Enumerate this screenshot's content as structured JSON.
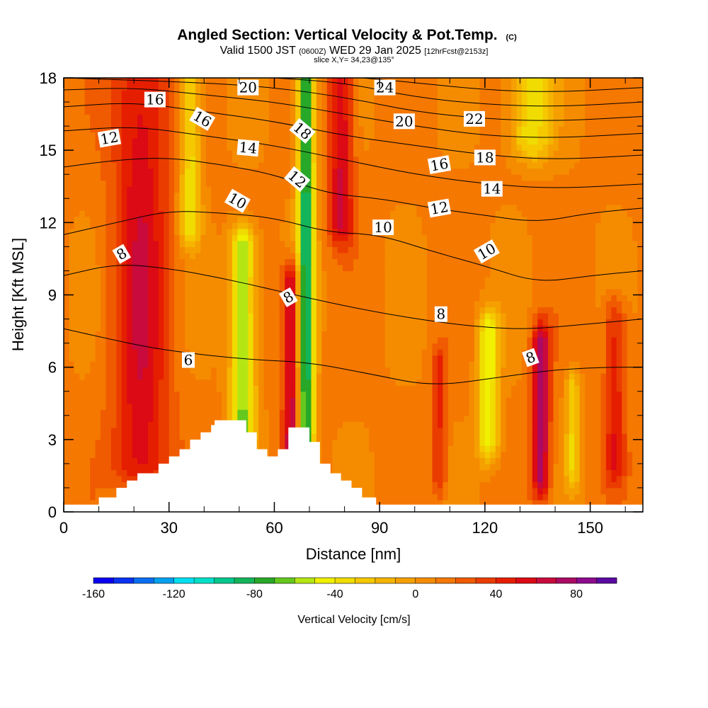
{
  "chart_data": {
    "type": "heatmap",
    "title": "Angled Section: Vertical Velocity & Pot.Temp.",
    "title_unit": "(C)",
    "subtitle_parts": [
      "Valid 1500 JST ",
      "(0600Z)",
      " WED 29 Jan 2025 ",
      "[12hrFcst@2153z]"
    ],
    "slice_label": "slice X,Y= 34,23@135°",
    "xlabel": "Distance [nm]",
    "ylabel": "Height [Kft MSL]",
    "xlim": [
      0,
      165
    ],
    "ylim": [
      0,
      18
    ],
    "x_ticks": [
      0,
      30,
      60,
      90,
      120,
      150
    ],
    "y_ticks": [
      0,
      3,
      6,
      9,
      12,
      15,
      18
    ],
    "x_tick_labels": [
      "0",
      "30",
      "60",
      "90",
      "120",
      "150"
    ],
    "y_tick_labels": [
      "0",
      "3",
      "6",
      "9",
      "12",
      "15",
      "18"
    ],
    "colorbar": {
      "title": "Vertical Velocity [cm/s]",
      "range": [
        -160,
        100
      ],
      "step": 10,
      "labels": [
        "-160",
        "-120",
        "-80",
        "-40",
        "0",
        "40",
        "80"
      ],
      "label_values": [
        -160,
        -120,
        -80,
        -40,
        0,
        40,
        80
      ],
      "colors": [
        "#0a00f0",
        "#0a32f0",
        "#0a6ef0",
        "#00a0f0",
        "#00e0f0",
        "#00e0c8",
        "#00c88c",
        "#14b45a",
        "#28a828",
        "#64c81e",
        "#b4e614",
        "#f0f000",
        "#f0dc00",
        "#f5c800",
        "#f5b400",
        "#f5a000",
        "#f58c00",
        "#f57800",
        "#f05a00",
        "#eb3c00",
        "#e61e00",
        "#dc0a14",
        "#c80a3c",
        "#aa0a64",
        "#8c0a8c",
        "#5a0aa0"
      ]
    },
    "velocity_features": [
      {
        "x": 22,
        "halfwidth": 8,
        "y_bottom": 2,
        "y_top": 18,
        "w": 45
      },
      {
        "x": 36,
        "halfwidth": 3,
        "y_bottom": 12,
        "y_top": 18,
        "w": -50
      },
      {
        "x": 51,
        "halfwidth": 3.5,
        "y_bottom": 3.5,
        "y_top": 11,
        "w": -75
      },
      {
        "x": 65,
        "halfwidth": 2.5,
        "y_bottom": 2.5,
        "y_top": 9.5,
        "w": 60
      },
      {
        "x": 69,
        "halfwidth": 2.5,
        "y_bottom": 3,
        "y_top": 18,
        "w": -100
      },
      {
        "x": 79,
        "halfwidth": 3.5,
        "y_bottom": 12,
        "y_top": 18,
        "w": 50
      },
      {
        "x": 107,
        "halfwidth": 2,
        "y_bottom": 1.5,
        "y_top": 6,
        "w": 30
      },
      {
        "x": 121,
        "halfwidth": 3,
        "y_bottom": 3,
        "y_top": 7.5,
        "w": -60
      },
      {
        "x": 136,
        "halfwidth": 2.5,
        "y_bottom": 1.5,
        "y_top": 7,
        "w": 65
      },
      {
        "x": 145,
        "halfwidth": 2,
        "y_bottom": 2,
        "y_top": 5,
        "w": -40
      },
      {
        "x": 157,
        "halfwidth": 3,
        "y_bottom": 2,
        "y_top": 8,
        "w": 35
      },
      {
        "x": 133,
        "halfwidth": 6,
        "y_bottom": 15.5,
        "y_top": 18,
        "w": -50
      }
    ],
    "terrain": [
      [
        0,
        0.3
      ],
      [
        10,
        0.3
      ],
      [
        10,
        0.6
      ],
      [
        15,
        0.6
      ],
      [
        15,
        1.0
      ],
      [
        18,
        1.0
      ],
      [
        18,
        1.3
      ],
      [
        21,
        1.3
      ],
      [
        21,
        1.6
      ],
      [
        27,
        1.6
      ],
      [
        27,
        2.0
      ],
      [
        30,
        2.0
      ],
      [
        30,
        2.3
      ],
      [
        33,
        2.3
      ],
      [
        33,
        2.6
      ],
      [
        36,
        2.6
      ],
      [
        36,
        3.0
      ],
      [
        39,
        3.0
      ],
      [
        39,
        3.3
      ],
      [
        42,
        3.3
      ],
      [
        42,
        3.6
      ],
      [
        43,
        3.6
      ],
      [
        43,
        3.8
      ],
      [
        52,
        3.8
      ],
      [
        52,
        3.3
      ],
      [
        55,
        3.3
      ],
      [
        55,
        2.6
      ],
      [
        58,
        2.6
      ],
      [
        58,
        2.3
      ],
      [
        61,
        2.3
      ],
      [
        61,
        2.6
      ],
      [
        64,
        2.6
      ],
      [
        64,
        3.5
      ],
      [
        70,
        3.5
      ],
      [
        70,
        2.9
      ],
      [
        73,
        2.9
      ],
      [
        73,
        2.0
      ],
      [
        76,
        2.0
      ],
      [
        76,
        1.6
      ],
      [
        79,
        1.6
      ],
      [
        79,
        1.3
      ],
      [
        82,
        1.3
      ],
      [
        82,
        1.0
      ],
      [
        85,
        1.0
      ],
      [
        85,
        0.6
      ],
      [
        89,
        0.6
      ],
      [
        89,
        0.3
      ],
      [
        165,
        0.3
      ]
    ],
    "theta_contours": [
      {
        "label": "6",
        "points": [
          [
            0,
            7.6
          ],
          [
            12,
            7.2
          ],
          [
            25,
            6.8
          ],
          [
            40,
            6.5
          ],
          [
            55,
            6.3
          ],
          [
            70,
            6.2
          ],
          [
            88,
            5.7
          ],
          [
            105,
            5.2
          ],
          [
            125,
            5.6
          ],
          [
            140,
            5.9
          ],
          [
            155,
            6.0
          ],
          [
            165,
            6.0
          ]
        ]
      },
      {
        "label": "8",
        "points": [
          [
            0,
            9.8
          ],
          [
            15,
            10.3
          ],
          [
            30,
            10.1
          ],
          [
            45,
            9.7
          ],
          [
            60,
            9.2
          ],
          [
            75,
            8.7
          ],
          [
            92,
            8.2
          ],
          [
            110,
            7.8
          ],
          [
            125,
            7.6
          ],
          [
            135,
            7.6
          ],
          [
            150,
            7.8
          ],
          [
            165,
            8.0
          ]
        ]
      },
      {
        "label": "10",
        "points": [
          [
            0,
            11.5
          ],
          [
            15,
            12.0
          ],
          [
            30,
            12.5
          ],
          [
            45,
            12.4
          ],
          [
            60,
            12.2
          ],
          [
            75,
            11.6
          ],
          [
            90,
            11.5
          ],
          [
            105,
            10.8
          ],
          [
            120,
            10.2
          ],
          [
            135,
            9.5
          ],
          [
            150,
            9.8
          ],
          [
            165,
            10.0
          ]
        ]
      },
      {
        "label": "12",
        "points": [
          [
            0,
            14.3
          ],
          [
            15,
            14.6
          ],
          [
            30,
            14.7
          ],
          [
            45,
            14.4
          ],
          [
            60,
            14.0
          ],
          [
            75,
            13.2
          ],
          [
            90,
            13.0
          ],
          [
            105,
            12.6
          ],
          [
            120,
            12.3
          ],
          [
            135,
            12.0
          ],
          [
            150,
            12.4
          ],
          [
            165,
            12.6
          ]
        ]
      },
      {
        "label": "14",
        "points": [
          [
            0,
            15.8
          ],
          [
            20,
            16.0
          ],
          [
            40,
            15.6
          ],
          [
            60,
            15.2
          ],
          [
            80,
            14.6
          ],
          [
            100,
            14.0
          ],
          [
            120,
            13.6
          ],
          [
            140,
            13.4
          ],
          [
            165,
            13.6
          ]
        ]
      },
      {
        "label": "16",
        "points": [
          [
            0,
            16.8
          ],
          [
            20,
            17.0
          ],
          [
            40,
            16.6
          ],
          [
            60,
            16.2
          ],
          [
            80,
            15.6
          ],
          [
            100,
            15.2
          ],
          [
            120,
            14.8
          ],
          [
            140,
            14.6
          ],
          [
            165,
            14.8
          ]
        ]
      },
      {
        "label": "18",
        "points": [
          [
            0,
            17.5
          ],
          [
            20,
            17.6
          ],
          [
            40,
            17.3
          ],
          [
            60,
            17.0
          ],
          [
            80,
            16.5
          ],
          [
            100,
            16.0
          ],
          [
            120,
            15.6
          ],
          [
            140,
            15.5
          ],
          [
            165,
            15.7
          ]
        ]
      },
      {
        "label": "20",
        "points": [
          [
            0,
            18.0
          ],
          [
            40,
            17.8
          ],
          [
            60,
            17.6
          ],
          [
            80,
            17.2
          ],
          [
            100,
            16.6
          ],
          [
            120,
            16.3
          ],
          [
            140,
            16.2
          ],
          [
            165,
            16.4
          ]
        ]
      },
      {
        "label": "22",
        "points": [
          [
            60,
            18.0
          ],
          [
            80,
            17.8
          ],
          [
            100,
            17.2
          ],
          [
            120,
            16.9
          ],
          [
            140,
            16.8
          ],
          [
            165,
            17.0
          ]
        ]
      },
      {
        "label": "24",
        "points": [
          [
            85,
            18.0
          ],
          [
            100,
            17.8
          ],
          [
            120,
            17.5
          ],
          [
            140,
            17.4
          ],
          [
            165,
            17.6
          ]
        ]
      }
    ],
    "contour_labels": [
      {
        "text": "16",
        "x": 26,
        "y": 17.1,
        "rot": 0
      },
      {
        "text": "16",
        "x": 39.5,
        "y": 16.3,
        "rot": 30
      },
      {
        "text": "20",
        "x": 52.5,
        "y": 17.6,
        "rot": 0
      },
      {
        "text": "24",
        "x": 91.5,
        "y": 17.6,
        "rot": 0
      },
      {
        "text": "12",
        "x": 13,
        "y": 15.5,
        "rot": -10
      },
      {
        "text": "20",
        "x": 97,
        "y": 16.2,
        "rot": 0
      },
      {
        "text": "22",
        "x": 117,
        "y": 16.3,
        "rot": 0
      },
      {
        "text": "18",
        "x": 68,
        "y": 15.8,
        "rot": 40
      },
      {
        "text": "14",
        "x": 52.5,
        "y": 15.1,
        "rot": 5
      },
      {
        "text": "16",
        "x": 107,
        "y": 14.4,
        "rot": -10
      },
      {
        "text": "18",
        "x": 120,
        "y": 14.7,
        "rot": 0
      },
      {
        "text": "12",
        "x": 66.5,
        "y": 13.8,
        "rot": 40
      },
      {
        "text": "14",
        "x": 122,
        "y": 13.4,
        "rot": 0
      },
      {
        "text": "10",
        "x": 49.5,
        "y": 12.9,
        "rot": 30
      },
      {
        "text": "12",
        "x": 107,
        "y": 12.6,
        "rot": -10
      },
      {
        "text": "10",
        "x": 91,
        "y": 11.8,
        "rot": 0
      },
      {
        "text": "8",
        "x": 16.5,
        "y": 10.7,
        "rot": -30
      },
      {
        "text": "10",
        "x": 120.5,
        "y": 10.8,
        "rot": -30
      },
      {
        "text": "8",
        "x": 64,
        "y": 8.9,
        "rot": -30
      },
      {
        "text": "8",
        "x": 107.5,
        "y": 8.2,
        "rot": 0
      },
      {
        "text": "8",
        "x": 133,
        "y": 6.4,
        "rot": -20
      },
      {
        "text": "6",
        "x": 35.5,
        "y": 6.3,
        "rot": 0
      }
    ]
  }
}
